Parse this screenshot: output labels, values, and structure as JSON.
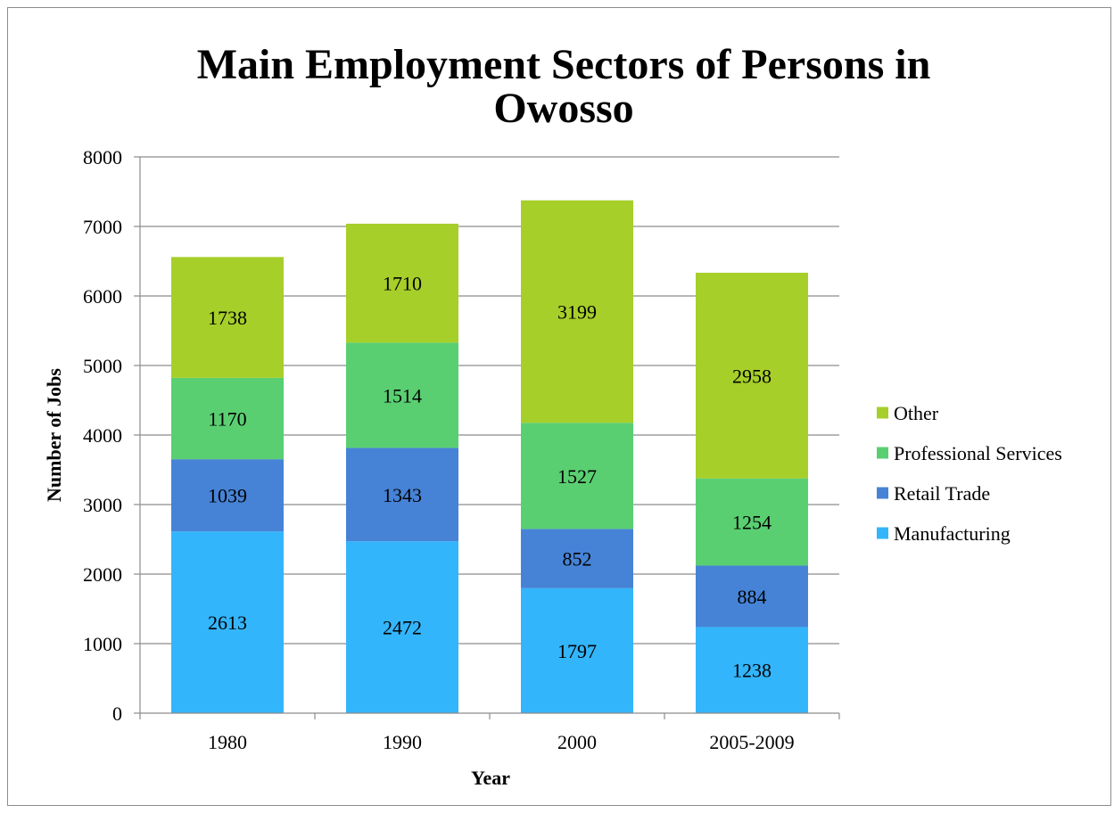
{
  "colors": {
    "Manufacturing": "#33b5fb",
    "Retail Trade": "#4683d6",
    "Professional Services": "#5acf72",
    "Other": "#a6cf2a",
    "grid": "#8c8c8c",
    "axis": "#8c8c8c"
  },
  "chart_data": {
    "type": "bar",
    "stacked": true,
    "title": "Main Employment Sectors of Persons in Owosso",
    "title_lines": [
      "Main Employment Sectors of Persons in",
      "Owosso"
    ],
    "xlabel": "Year",
    "ylabel": "Number of Jobs",
    "categories": [
      "1980",
      "1990",
      "2000",
      "2005-2009"
    ],
    "ylim": [
      0,
      8000
    ],
    "yticks": [
      0,
      1000,
      2000,
      3000,
      4000,
      5000,
      6000,
      7000,
      8000
    ],
    "grid": true,
    "legend_position": "right",
    "series": [
      {
        "name": "Manufacturing",
        "values": [
          2613,
          2472,
          1797,
          1238
        ]
      },
      {
        "name": "Retail Trade",
        "values": [
          1039,
          1343,
          852,
          884
        ]
      },
      {
        "name": "Professional Services",
        "values": [
          1170,
          1514,
          1527,
          1254
        ]
      },
      {
        "name": "Other",
        "values": [
          1738,
          1710,
          3199,
          2958
        ]
      }
    ]
  }
}
